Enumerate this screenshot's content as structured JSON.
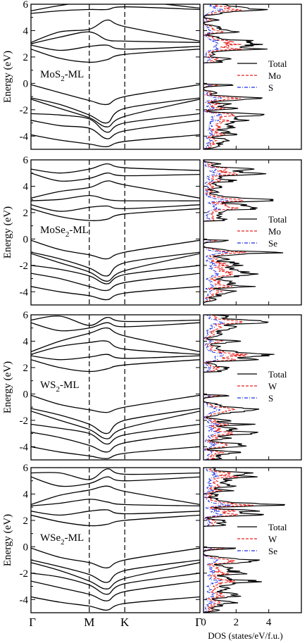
{
  "chart_data": {
    "type": "line",
    "panels": [
      {
        "label_main": "MoS",
        "label_sub": "2",
        "label_tail": "-ML",
        "ylabel": "Energy (eV)",
        "ylim": [
          -5,
          6
        ],
        "yticks": [
          "-4",
          "-2",
          "0",
          "2",
          "4",
          "6"
        ],
        "bands": [
          [
            5.5,
            5.9,
            6.2,
            6.1,
            6.3,
            5.7
          ],
          [
            5.3,
            5.5,
            5.6,
            5.6,
            5.8,
            5.6
          ],
          [
            3.1,
            3.9,
            4.1,
            4.8,
            4.3,
            3.2
          ],
          [
            3.0,
            3.5,
            3.9,
            3.3,
            3.2,
            3.1
          ],
          [
            2.9,
            2.5,
            2.8,
            2.9,
            2.6,
            2.8
          ],
          [
            2.6,
            1.9,
            1.6,
            1.8,
            2.2,
            2.6
          ],
          [
            -0.1,
            -0.7,
            -1.3,
            -1.6,
            -1.0,
            -0.1
          ],
          [
            -1.1,
            -1.6,
            -2.4,
            -3.0,
            -1.9,
            -1.1
          ],
          [
            -1.2,
            -1.9,
            -2.6,
            -3.3,
            -2.5,
            -1.2
          ],
          [
            -2.3,
            -2.4,
            -2.7,
            -3.7,
            -3.0,
            -2.3
          ],
          [
            -2.8,
            -3.2,
            -3.4,
            -4.2,
            -3.6,
            -2.8
          ],
          [
            -3.9,
            -4.3,
            -4.6,
            -4.8,
            -4.4,
            -3.9
          ]
        ],
        "dos_legend": [
          "Total",
          "Mo",
          "S"
        ]
      },
      {
        "label_main": "MoSe",
        "label_sub": "2",
        "label_tail": "-ML",
        "ylabel": "Energy (eV)",
        "ylim": [
          -5,
          6
        ],
        "yticks": [
          "-4",
          "-2",
          "0",
          "2",
          "4",
          "6"
        ],
        "bands": [
          [
            5.3,
            5.0,
            5.3,
            5.7,
            5.4,
            5.2
          ],
          [
            5.0,
            4.4,
            4.6,
            5.0,
            4.8,
            4.9
          ],
          [
            3.1,
            3.6,
            3.9,
            4.4,
            4.1,
            3.1
          ],
          [
            2.9,
            3.0,
            3.3,
            3.0,
            2.9,
            2.9
          ],
          [
            2.6,
            2.1,
            2.4,
            2.5,
            2.3,
            2.6
          ],
          [
            2.3,
            1.7,
            1.4,
            1.5,
            1.9,
            2.3
          ],
          [
            -0.1,
            -0.8,
            -1.2,
            -1.5,
            -1.0,
            -0.1
          ],
          [
            -1.0,
            -1.5,
            -2.2,
            -2.8,
            -1.8,
            -1.0
          ],
          [
            -1.1,
            -1.8,
            -2.5,
            -3.2,
            -2.4,
            -1.1
          ],
          [
            -2.0,
            -2.3,
            -2.8,
            -3.4,
            -2.7,
            -2.0
          ],
          [
            -2.6,
            -3.0,
            -3.6,
            -3.9,
            -3.3,
            -2.6
          ],
          [
            -3.6,
            -4.0,
            -4.3,
            -4.6,
            -4.1,
            -3.6
          ]
        ],
        "dos_legend": [
          "Total",
          "Mo",
          "Se"
        ]
      },
      {
        "label_main": "WS",
        "label_sub": "2",
        "label_tail": "-ML",
        "ylabel": "Energy (eV)",
        "ylim": [
          -5,
          6
        ],
        "yticks": [
          "-4",
          "-2",
          "0",
          "2",
          "4",
          "6"
        ],
        "bands": [
          [
            5.6,
            5.9,
            5.2,
            5.8,
            5.5,
            5.6
          ],
          [
            5.4,
            4.8,
            5.0,
            5.4,
            5.1,
            5.4
          ],
          [
            3.2,
            4.0,
            4.6,
            5.0,
            4.4,
            3.2
          ],
          [
            3.0,
            3.6,
            3.9,
            4.0,
            3.4,
            3.0
          ],
          [
            2.9,
            2.6,
            2.8,
            3.0,
            2.7,
            2.9
          ],
          [
            2.6,
            2.0,
            1.7,
            1.9,
            2.2,
            2.6
          ],
          [
            -0.1,
            -0.8,
            -1.2,
            -1.4,
            -1.0,
            -0.1
          ],
          [
            -1.1,
            -1.6,
            -2.3,
            -3.0,
            -2.0,
            -1.1
          ],
          [
            -1.3,
            -2.0,
            -2.7,
            -3.4,
            -2.6,
            -1.3
          ],
          [
            -2.3,
            -2.6,
            -3.0,
            -3.8,
            -3.1,
            -2.3
          ],
          [
            -2.9,
            -3.3,
            -3.9,
            -4.4,
            -3.7,
            -2.9
          ],
          [
            -4.0,
            -4.4,
            -4.7,
            -4.9,
            -4.5,
            -4.0
          ]
        ],
        "dos_legend": [
          "Total",
          "W",
          "S"
        ]
      },
      {
        "label_main": "WSe",
        "label_sub": "2",
        "label_tail": "-ML",
        "ylabel": "Energy (eV)",
        "ylim": [
          -5,
          6
        ],
        "yticks": [
          "-4",
          "-2",
          "0",
          "2",
          "4",
          "6"
        ],
        "bands": [
          [
            5.6,
            5.6,
            5.1,
            5.9,
            5.5,
            5.6
          ],
          [
            5.3,
            4.6,
            4.8,
            5.3,
            5.0,
            5.3
          ],
          [
            3.2,
            3.9,
            4.3,
            4.6,
            4.2,
            3.2
          ],
          [
            3.1,
            3.3,
            3.6,
            3.4,
            3.2,
            3.1
          ],
          [
            2.7,
            2.4,
            2.7,
            2.8,
            2.5,
            2.7
          ],
          [
            2.4,
            1.9,
            1.6,
            1.7,
            2.0,
            2.4
          ],
          [
            -0.1,
            -0.8,
            -1.2,
            -1.6,
            -1.0,
            -0.1
          ],
          [
            -1.0,
            -1.5,
            -2.1,
            -2.7,
            -1.8,
            -1.0
          ],
          [
            -1.2,
            -1.8,
            -2.6,
            -3.2,
            -2.4,
            -1.2
          ],
          [
            -2.0,
            -2.3,
            -2.9,
            -3.6,
            -2.8,
            -2.0
          ],
          [
            -2.6,
            -3.1,
            -3.6,
            -4.1,
            -3.4,
            -2.6
          ],
          [
            -3.8,
            -4.2,
            -4.5,
            -4.8,
            -4.3,
            -3.8
          ]
        ],
        "dos_legend": [
          "Total",
          "W",
          "Se"
        ]
      }
    ],
    "kpath": [
      "Γ",
      "M",
      "K",
      "Γ"
    ],
    "kpath_positions": [
      0,
      0.345,
      0.555,
      1
    ],
    "dos_xlim": [
      0,
      6
    ],
    "dos_xticks": [
      "0",
      "2",
      "4"
    ],
    "dos_xlabel": "DOS (states/eV/f.u.)",
    "series_colors": {
      "total": "#000000",
      "metal": "#e8201c",
      "chalcogen": "#1c2ee0"
    }
  }
}
